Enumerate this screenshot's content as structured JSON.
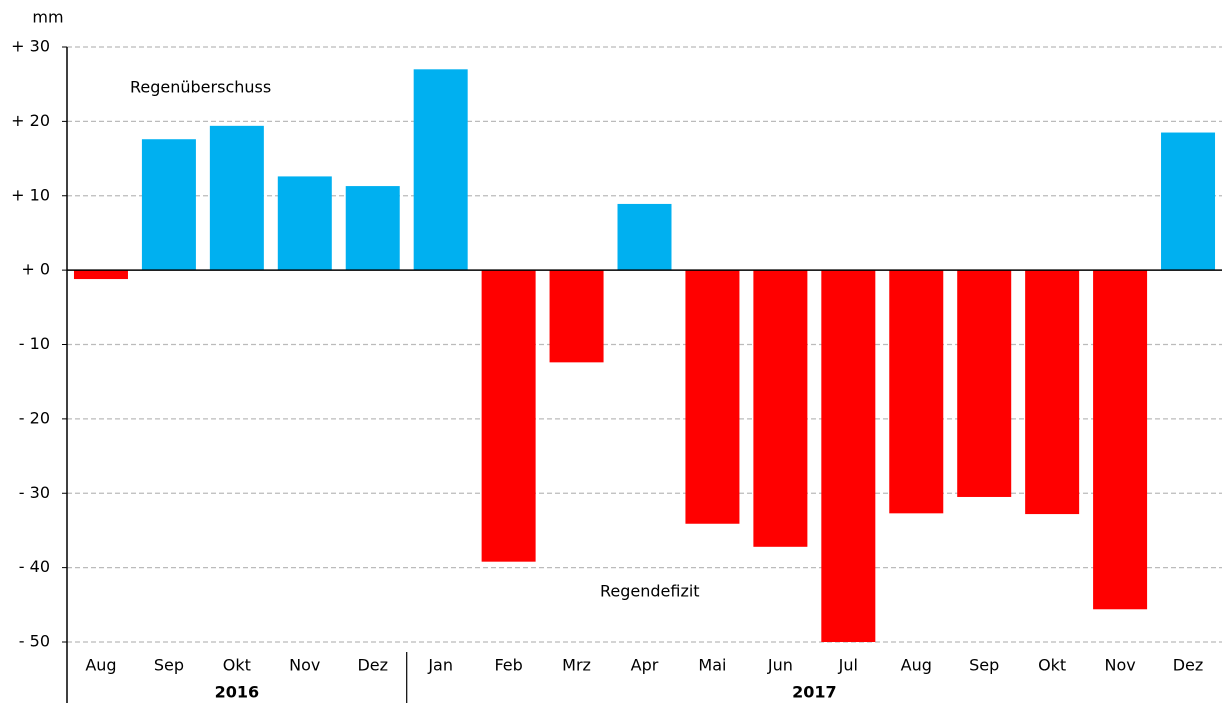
{
  "chart_data": {
    "type": "bar",
    "unit": "mm",
    "categories": [
      "Aug",
      "Sep",
      "Okt",
      "Nov",
      "Dez",
      "Jan",
      "Feb",
      "Mrz",
      "Apr",
      "Mai",
      "Jun",
      "Jul",
      "Aug",
      "Sep",
      "Okt",
      "Nov",
      "Dez"
    ],
    "values": [
      -1.2,
      17.6,
      19.4,
      12.6,
      11.3,
      27.0,
      -39.2,
      -12.4,
      8.9,
      -34.1,
      -37.2,
      -50.0,
      -32.7,
      -30.5,
      -32.8,
      -45.6,
      18.5
    ],
    "groups": [
      {
        "label": "2016",
        "count": 5
      },
      {
        "label": "2017",
        "count": 12
      }
    ],
    "positive_color": "#00b0f0",
    "negative_color": "#ff0000",
    "ylim": [
      -50,
      30
    ],
    "yticks": [
      {
        "value": 30,
        "label": "+ 30"
      },
      {
        "value": 20,
        "label": "+ 20"
      },
      {
        "value": 10,
        "label": "+ 10"
      },
      {
        "value": 0,
        "label": "+ 0"
      },
      {
        "value": -10,
        "label": "- 10"
      },
      {
        "value": -20,
        "label": "- 20"
      },
      {
        "value": -30,
        "label": "- 30"
      },
      {
        "value": -40,
        "label": "- 40"
      },
      {
        "value": -50,
        "label": "- 50"
      }
    ],
    "grid": true,
    "annotations": [
      "Regenüberschuss",
      "Regendefizit"
    ]
  }
}
